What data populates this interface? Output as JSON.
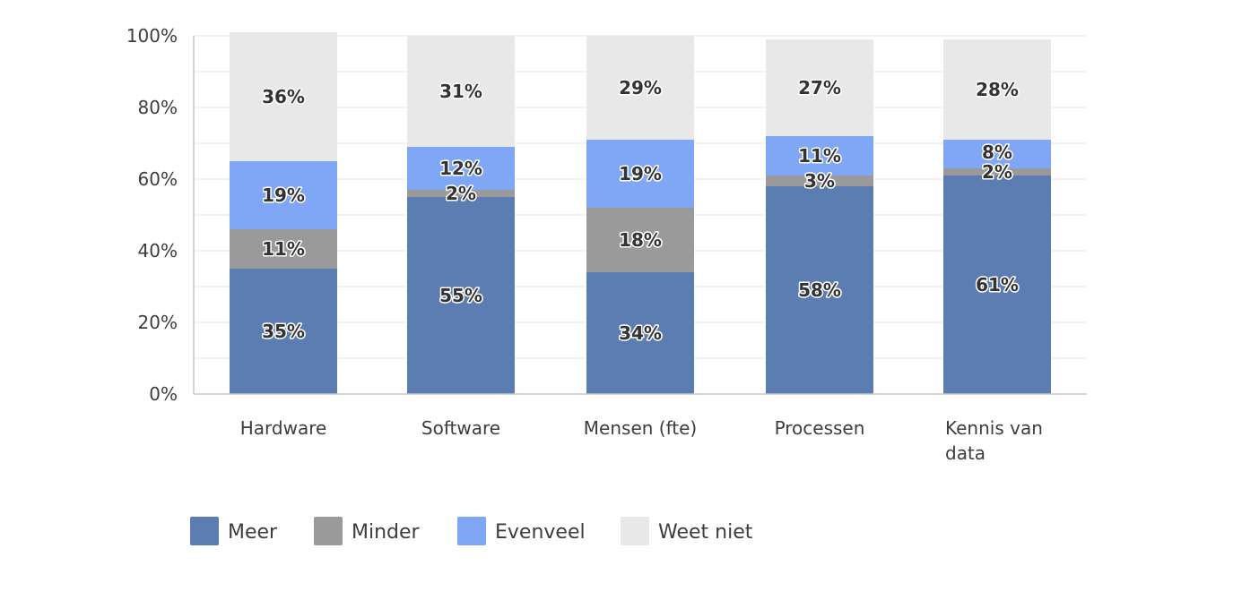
{
  "chart_data": {
    "type": "bar",
    "stacked": true,
    "categories": [
      [
        "Hardware"
      ],
      [
        "Software"
      ],
      [
        "Mensen (fte)"
      ],
      [
        "Processen"
      ],
      [
        "Kennis van",
        "data"
      ]
    ],
    "series": [
      {
        "name": "Meer",
        "color": "#5b7db1",
        "values": [
          35,
          55,
          34,
          58,
          61
        ]
      },
      {
        "name": "Minder",
        "color": "#9a9a9a",
        "values": [
          11,
          2,
          18,
          3,
          2
        ]
      },
      {
        "name": "Evenveel",
        "color": "#7fa7f5",
        "values": [
          19,
          12,
          19,
          11,
          8
        ]
      },
      {
        "name": "Weet niet",
        "color": "#e8e8e8",
        "values": [
          36,
          31,
          29,
          27,
          28
        ]
      }
    ],
    "y_ticks": [
      "0%",
      "20%",
      "40%",
      "60%",
      "80%",
      "100%"
    ],
    "ylim": [
      0,
      100
    ],
    "value_suffix": "%",
    "grid": true,
    "legend_position": "bottom-left",
    "title": "",
    "xlabel": "",
    "ylabel": ""
  }
}
